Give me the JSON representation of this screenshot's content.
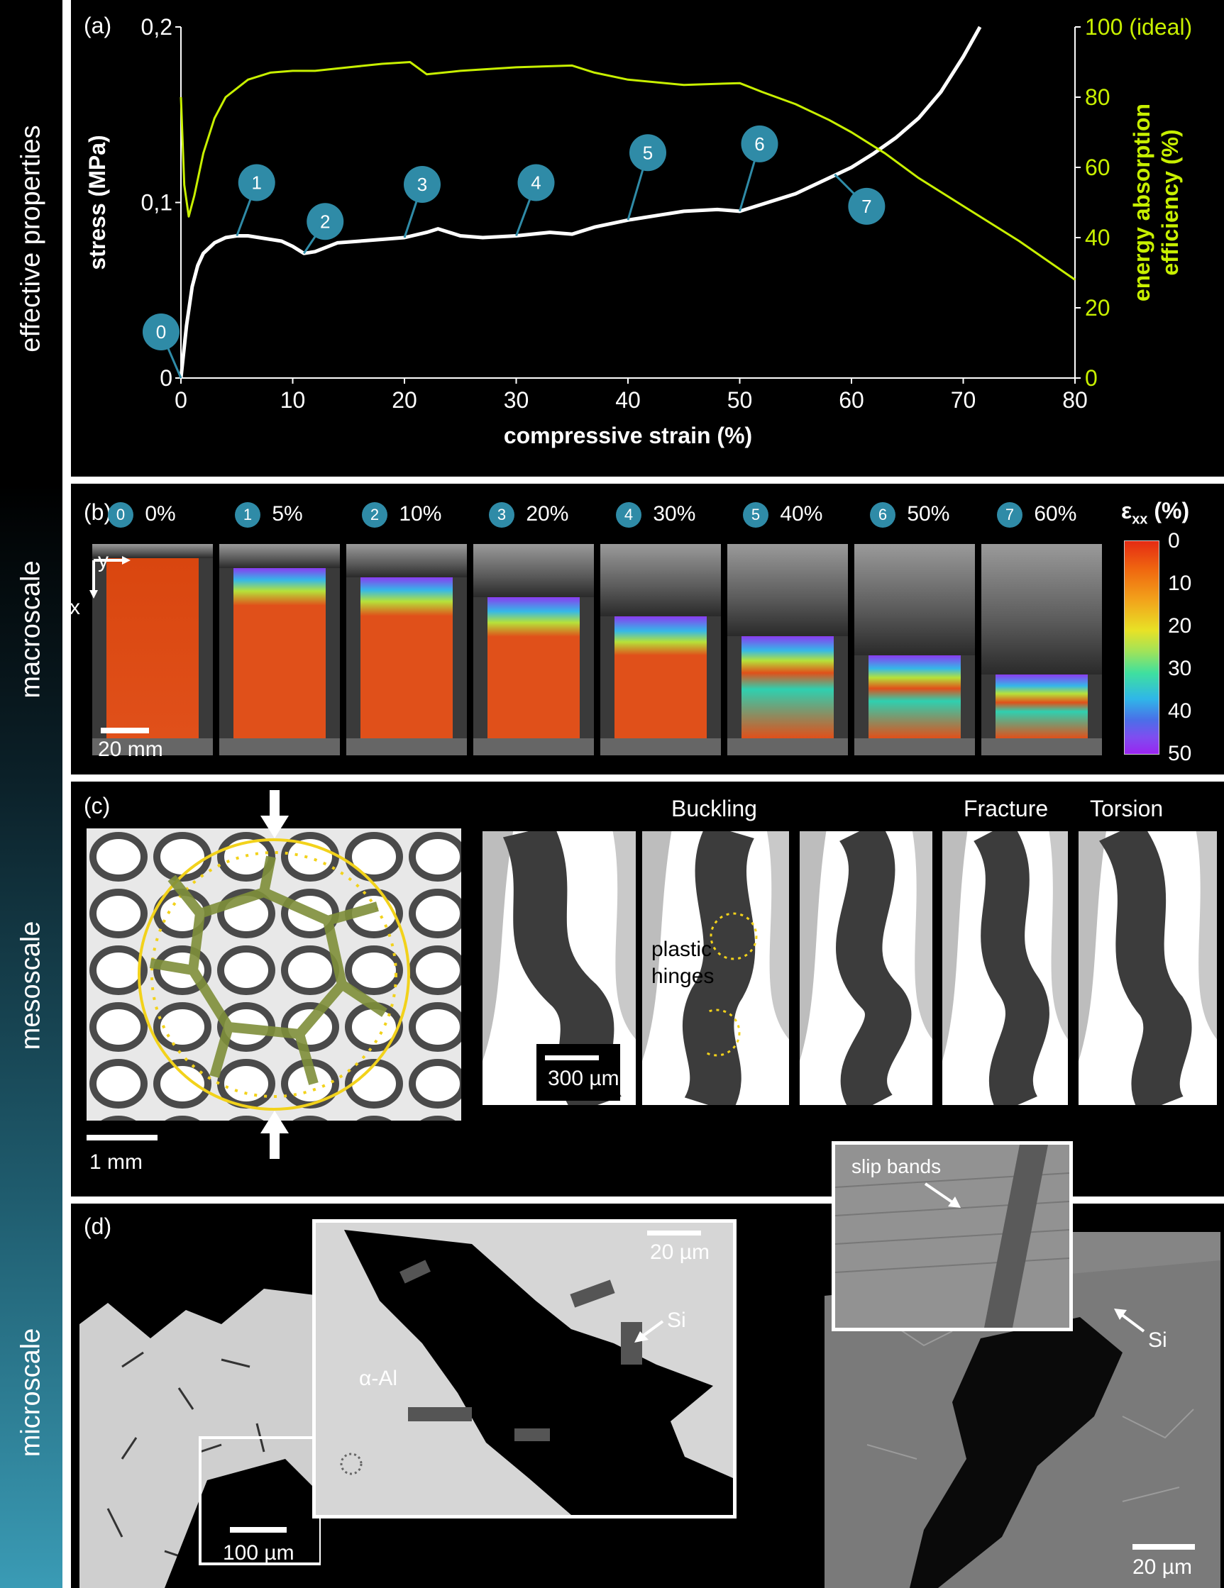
{
  "sidebar": {
    "a": "effective properties",
    "b": "macroscale",
    "c": "mesoscale",
    "d": "microscale"
  },
  "colors": {
    "stress": "#ffffff",
    "efficiency": "#c8f000",
    "badge": "#2f8ba7",
    "sidebar_a": "#000000",
    "sidebar_gradient_top": "#0d2a33",
    "sidebar_gradient_bottom": "#3a9bb5"
  },
  "panel_a": {
    "label": "(a)",
    "chart_data": {
      "type": "line",
      "title": "",
      "xlabel": "compressive strain (%)",
      "ylabel": "stress (MPa)",
      "y2label_line1": "energy absorption",
      "y2label_line2": "efficiency (%)",
      "xlim": [
        0,
        80
      ],
      "ylim": [
        0,
        0.2
      ],
      "y2lim": [
        0,
        100
      ],
      "x_ticks": [
        "0",
        "10",
        "20",
        "30",
        "40",
        "50",
        "60",
        "70",
        "80"
      ],
      "y_ticks": [
        "0",
        "0,1",
        "0,2"
      ],
      "y2_ticks": [
        "0",
        "20",
        "40",
        "60",
        "80",
        "100 (ideal)"
      ],
      "grid": false,
      "series": [
        {
          "axis": "left",
          "x": [
            0,
            0.5,
            1,
            1.5,
            2,
            3,
            4,
            5,
            6,
            7,
            8,
            9,
            10,
            11,
            12,
            14,
            16,
            18,
            20,
            22,
            23,
            25,
            27,
            30,
            33,
            35,
            37,
            40,
            43,
            45,
            48,
            50,
            52,
            55,
            58,
            60,
            62,
            64,
            66,
            68,
            70,
            71.5
          ],
          "y": [
            0,
            0.03,
            0.052,
            0.064,
            0.071,
            0.077,
            0.08,
            0.081,
            0.081,
            0.08,
            0.079,
            0.078,
            0.075,
            0.071,
            0.072,
            0.077,
            0.078,
            0.079,
            0.08,
            0.083,
            0.085,
            0.081,
            0.08,
            0.081,
            0.083,
            0.082,
            0.086,
            0.09,
            0.093,
            0.095,
            0.096,
            0.095,
            0.099,
            0.105,
            0.114,
            0.12,
            0.128,
            0.137,
            0.148,
            0.163,
            0.183,
            0.2
          ]
        },
        {
          "axis": "right",
          "x": [
            0,
            0.3,
            0.7,
            1.2,
            2,
            3,
            4,
            6,
            8,
            10,
            12,
            15,
            18,
            20.5,
            22,
            25,
            30,
            35,
            37,
            40,
            45,
            50,
            52,
            55,
            58,
            60,
            63,
            66,
            70,
            75,
            80
          ],
          "y": [
            80,
            55,
            46,
            52,
            64,
            74,
            80,
            85,
            87,
            87.5,
            87.5,
            88.5,
            89.5,
            90,
            86.5,
            87.5,
            88.5,
            89,
            87,
            85,
            83.5,
            84,
            81.5,
            78,
            73.5,
            70,
            64,
            57,
            49,
            39,
            28
          ]
        }
      ],
      "annotations": [
        {
          "label": "0",
          "x": 0,
          "y": 0
        },
        {
          "label": "1",
          "x": 5,
          "y": 0.081
        },
        {
          "label": "2",
          "x": 11,
          "y": 0.071
        },
        {
          "label": "3",
          "x": 20,
          "y": 0.08
        },
        {
          "label": "4",
          "x": 30,
          "y": 0.081
        },
        {
          "label": "5",
          "x": 40,
          "y": 0.09
        },
        {
          "label": "6",
          "x": 50,
          "y": 0.095
        },
        {
          "label": "7",
          "x": 58.5,
          "y": 0.116
        }
      ]
    }
  },
  "panel_b": {
    "label": "(b)",
    "frames": [
      {
        "id": "0",
        "strain": "0%",
        "compression": 0.0
      },
      {
        "id": "1",
        "strain": "5%",
        "compression": 0.05
      },
      {
        "id": "2",
        "strain": "10%",
        "compression": 0.1
      },
      {
        "id": "3",
        "strain": "20%",
        "compression": 0.2
      },
      {
        "id": "4",
        "strain": "30%",
        "compression": 0.3
      },
      {
        "id": "5",
        "strain": "40%",
        "compression": 0.4
      },
      {
        "id": "6",
        "strain": "50%",
        "compression": 0.5
      },
      {
        "id": "7",
        "strain": "60%",
        "compression": 0.6
      }
    ],
    "axis_y": "y",
    "axis_x": "x",
    "scale_bar": "20 mm",
    "colorbar": {
      "title_main": "ε",
      "title_sub": "xx",
      "title_unit": "(%)",
      "ticks": [
        "0",
        "10",
        "20",
        "30",
        "40",
        "50"
      ]
    }
  },
  "panel_c": {
    "label": "(c)",
    "heading_buckling": "Buckling",
    "heading_fracture": "Fracture",
    "heading_torsion": "Torsion",
    "hinges_line1": "plastic",
    "hinges_line2": "hinges",
    "scale_left": "1 mm",
    "scale_mid": "300 µm"
  },
  "panel_d": {
    "label": "(d)",
    "label_al": "α-Al",
    "label_si_1": "Si",
    "label_si_2": "Si",
    "label_slip": "slip bands",
    "scale_inset": "20 µm",
    "scale_left": "100 µm",
    "scale_right": "20 µm"
  }
}
